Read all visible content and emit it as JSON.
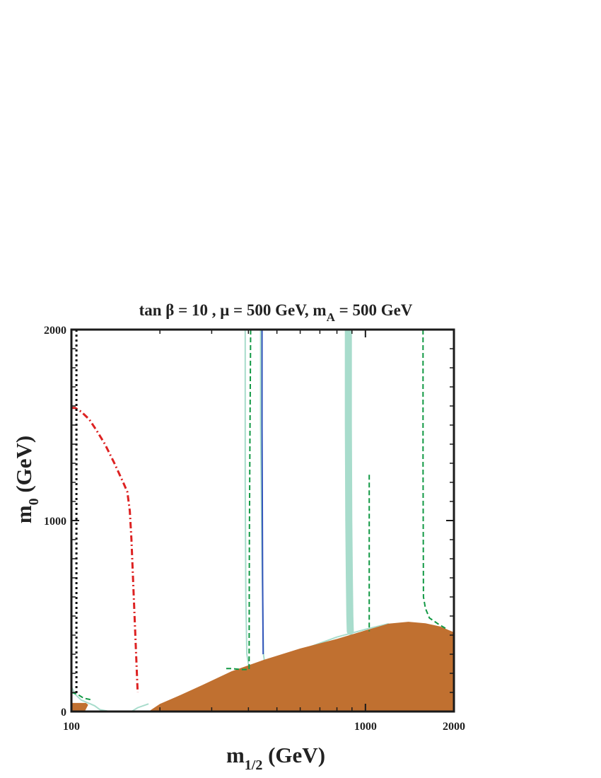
{
  "chart_data": {
    "type": "area",
    "title": "tan β = 10 ,  μ = 500 GeV,  m",
    "title_sub": "A",
    "title_tail": " = 500 GeV",
    "xlabel": "m",
    "xlabel_sub": "1/2",
    "xlabel_tail": " (GeV)",
    "ylabel": "m",
    "ylabel_sub": "0",
    "ylabel_tail": " (GeV)",
    "x_scale": "log",
    "xlim": [
      100,
      2000
    ],
    "ylim": [
      0,
      2000
    ],
    "x_tick_labels": [
      "100",
      "1000",
      "2000"
    ],
    "x_tick_values": [
      100,
      1000,
      2000
    ],
    "y_tick_labels": [
      "0",
      "1000",
      "2000"
    ],
    "y_tick_values": [
      0,
      1000,
      2000
    ],
    "grid": false,
    "colors": {
      "excluded_region": "#c07030",
      "wmap_band": "#a8dccc",
      "higgs_contour": "#dd2222",
      "chargino_contour": "#111111",
      "bsg_contour": "#119944",
      "gmuon_contour": "#3355bb"
    },
    "series": [
      {
        "role": "excluded_region",
        "kind": "fill",
        "x": [
          183,
          200,
          230,
          280,
          350,
          450,
          600,
          800,
          1000,
          1200,
          1400,
          1600,
          1800,
          2000,
          2000,
          183
        ],
        "y": [
          0,
          40,
          80,
          140,
          210,
          270,
          330,
          380,
          425,
          460,
          470,
          462,
          445,
          415,
          0,
          0
        ]
      },
      {
        "role": "excluded_region_small",
        "kind": "fill",
        "x": [
          100,
          100,
          112,
          114,
          111,
          100
        ],
        "y": [
          0,
          45,
          45,
          35,
          0,
          0
        ]
      },
      {
        "role": "wmap_band",
        "kind": "thick",
        "x": [
          875,
          875,
          878,
          882,
          885,
          888
        ],
        "y": [
          2000,
          1500,
          1000,
          700,
          500,
          420
        ]
      },
      {
        "role": "wmap_thin",
        "kind": "thin",
        "x": [
          440,
          440,
          445,
          450,
          455
        ],
        "y": [
          2000,
          1500,
          800,
          300,
          250
        ]
      },
      {
        "role": "wmap_thin",
        "kind": "thin",
        "x": [
          390,
          390,
          392,
          395,
          402,
          440,
          470,
          600,
          800,
          1000,
          1200
        ],
        "y": [
          2000,
          1200,
          600,
          300,
          230,
          230,
          250,
          320,
          390,
          430,
          460
        ]
      },
      {
        "role": "wmap_thin",
        "kind": "thin",
        "x": [
          100,
          103,
          108,
          116,
          120,
          125,
          135
        ],
        "y": [
          130,
          90,
          60,
          40,
          30,
          10,
          0
        ]
      },
      {
        "role": "wmap_thin",
        "kind": "thin",
        "x": [
          160,
          168,
          183
        ],
        "y": [
          0,
          20,
          40
        ]
      },
      {
        "role": "higgs_contour",
        "kind": "dashdot",
        "x": [
          100,
          103,
          108,
          115,
          122,
          130,
          140,
          150,
          155,
          158,
          160,
          162,
          166,
          168
        ],
        "y": [
          1590,
          1590,
          1570,
          1530,
          1470,
          1400,
          1300,
          1200,
          1150,
          1050,
          900,
          700,
          300,
          100
        ]
      },
      {
        "role": "chargino_contour",
        "kind": "dotted",
        "x": [
          104,
          104,
          104
        ],
        "y": [
          2000,
          1000,
          90
        ]
      },
      {
        "role": "bsg_contour",
        "kind": "dashed",
        "x": [
          407,
          405,
          403,
          402,
          380,
          350,
          330
        ],
        "y": [
          2000,
          1500,
          900,
          220,
          220,
          225,
          225
        ]
      },
      {
        "role": "bsg_contour",
        "kind": "dashed",
        "x": [
          1030,
          1030,
          1030
        ],
        "y": [
          1240,
          800,
          420
        ]
      },
      {
        "role": "bsg_contour",
        "kind": "dashed",
        "x": [
          1570,
          1570,
          1575,
          1600,
          1650,
          1780,
          1900
        ],
        "y": [
          2000,
          1300,
          600,
          540,
          490,
          455,
          430
        ]
      },
      {
        "role": "bsg_contour",
        "kind": "dashed",
        "x": [
          100,
          105,
          110,
          118
        ],
        "y": [
          100,
          90,
          70,
          60
        ]
      },
      {
        "role": "gmuon_contour",
        "kind": "solid",
        "x": [
          445,
          445,
          447,
          449
        ],
        "y": [
          2000,
          1500,
          700,
          300
        ]
      }
    ]
  }
}
